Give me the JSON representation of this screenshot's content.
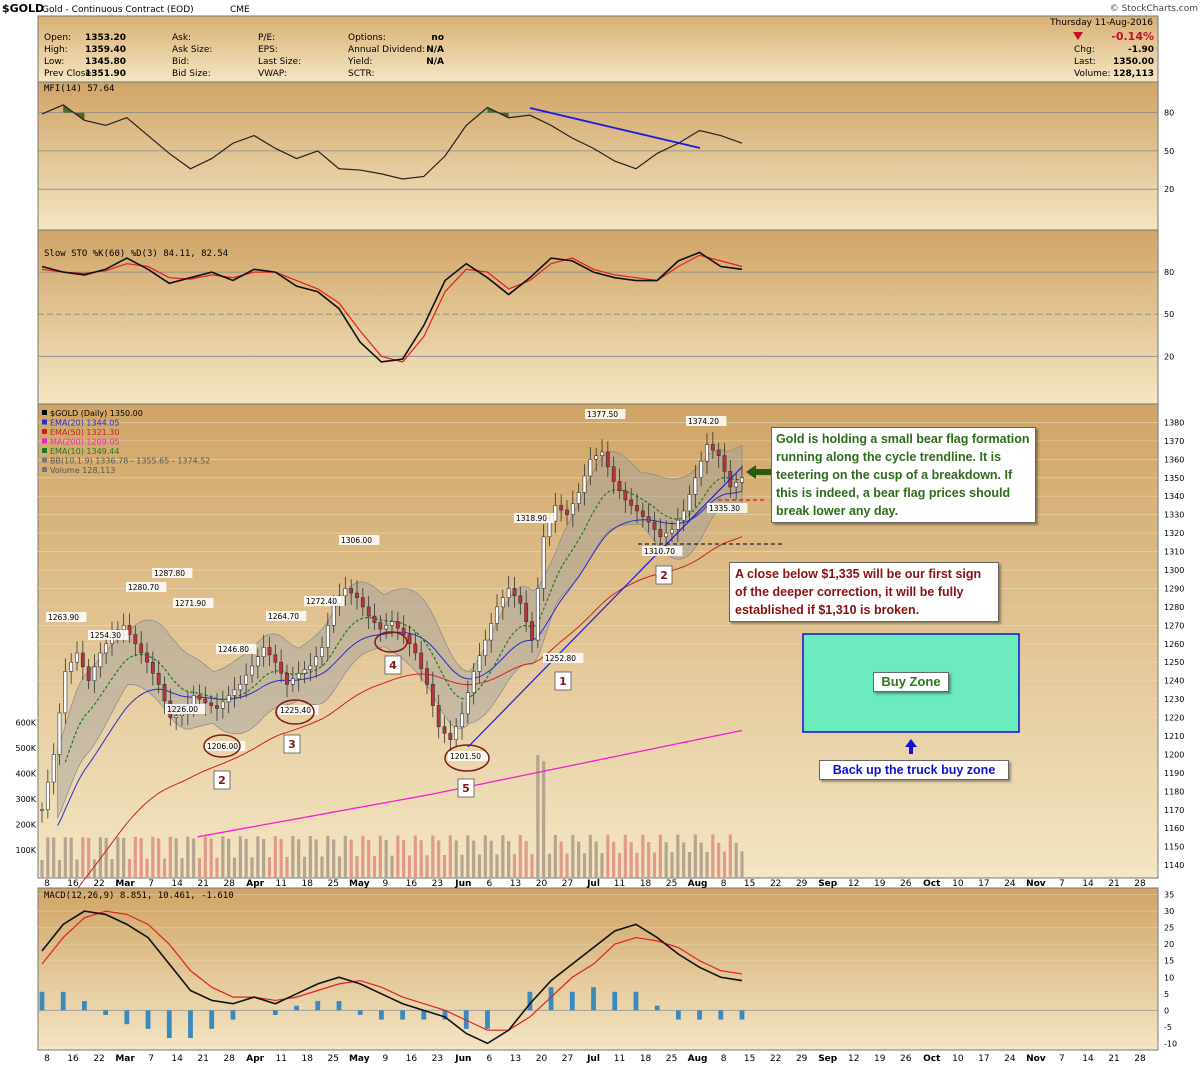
{
  "header": {
    "symbol": "$GOLD",
    "name": "Gold - Continuous Contract (EOD)",
    "exchange": "CME",
    "watermark": "© StockCharts.com",
    "date": "Thursday 11-Aug-2016",
    "stats_left": [
      {
        "label": "Open:",
        "value": "1353.20"
      },
      {
        "label": "High:",
        "value": "1359.40"
      },
      {
        "label": "Low:",
        "value": "1345.80"
      },
      {
        "label": "Prev Close:",
        "value": "1351.90"
      }
    ],
    "stats_mid": [
      {
        "label": "Ask:",
        "value": ""
      },
      {
        "label": "Ask Size:",
        "value": ""
      },
      {
        "label": "Bid:",
        "value": ""
      },
      {
        "label": "Bid Size:",
        "value": ""
      }
    ],
    "stats_mid2": [
      {
        "label": "P/E:",
        "value": ""
      },
      {
        "label": "EPS:",
        "value": ""
      },
      {
        "label": "Last Size:",
        "value": ""
      },
      {
        "label": "VWAP:",
        "value": ""
      }
    ],
    "stats_mid3": [
      {
        "label": "Options:",
        "value": "no"
      },
      {
        "label": "Annual Dividend:",
        "value": "N/A"
      },
      {
        "label": "Yield:",
        "value": "N/A"
      },
      {
        "label": "SCTR:",
        "value": ""
      }
    ],
    "stats_right": [
      {
        "label": "",
        "value": "-0.14%"
      },
      {
        "label": "Chg:",
        "value": "-1.90"
      },
      {
        "label": "Last:",
        "value": "1350.00"
      },
      {
        "label": "Volume:",
        "value": "128,113"
      }
    ]
  },
  "panels": {
    "mfi_label": "MFI(14) 57.64",
    "sto_label": "Slow STO %K(60) %D(3) 84.11, 82.54",
    "macd_label": "MACD(12,26,9) 8.851, 10.461, -1.610",
    "price_legend": [
      {
        "text": "$GOLD (Daily) 1350.00",
        "color": "#000000"
      },
      {
        "text": "EMA(20) 1344.05",
        "color": "#2a2ad0"
      },
      {
        "text": "EMA(50) 1321.30",
        "color": "#cc2020"
      },
      {
        "text": "MA(200) 1209.05",
        "color": "#ee22cc"
      },
      {
        "text": "EMA(10) 1349.44",
        "color": "#207820"
      },
      {
        "text": "BB(10,1.9) 1336.78 - 1355.65 - 1374.52",
        "color": "#777777"
      },
      {
        "text": "Volume 128,113",
        "color": "#777777"
      }
    ]
  },
  "annotations": {
    "note1": "Gold is holding a small bear flag formation running along the cycle trendline. It is teetering on the cusp of a breakdown. If this is indeed, a bear flag prices should break lower any day.",
    "note2": "A close below $1,335 will be our first sign of the deeper correction, it will be fully established if $1,310 is broken.",
    "buy_zone": "Buy Zone",
    "truck": "Back up the truck buy zone",
    "wave_labels": [
      "2",
      "3",
      "4",
      "5",
      "1",
      "2"
    ],
    "price_labels": [
      "1263.90",
      "1254.30",
      "1280.70",
      "1287.80",
      "1271.90",
      "1246.80",
      "1226.00",
      "1206.00",
      "1264.70",
      "1225.40",
      "1272.40",
      "1306.00",
      "1201.50",
      "1318.90",
      "1252.80",
      "1377.50",
      "1374.20",
      "1335.30",
      "1310.70"
    ]
  },
  "chart_data": {
    "type": "line",
    "title": "$GOLD (Daily) 1350.00",
    "x_ticks": [
      "8",
      "16",
      "22",
      "Mar",
      "7",
      "14",
      "21",
      "28",
      "Apr",
      "11",
      "18",
      "25",
      "May",
      "9",
      "16",
      "23",
      "Jun",
      "6",
      "13",
      "20",
      "27",
      "Jul",
      "11",
      "18",
      "25",
      "Aug",
      "8",
      "15",
      "22",
      "29",
      "Sep",
      "12",
      "19",
      "26",
      "Oct",
      "10",
      "17",
      "24",
      "Nov",
      "7",
      "14",
      "21",
      "28"
    ],
    "price_y_ticks": [
      1140,
      1150,
      1160,
      1170,
      1180,
      1190,
      1200,
      1210,
      1220,
      1230,
      1240,
      1250,
      1260,
      1270,
      1280,
      1290,
      1300,
      1310,
      1320,
      1330,
      1340,
      1350,
      1360,
      1370,
      1380
    ],
    "volume_y_ticks": [
      "100K",
      "200K",
      "300K",
      "400K",
      "500K",
      "600K"
    ],
    "mfi_y_ticks": [
      20,
      50,
      80
    ],
    "sto_y_ticks": [
      20,
      50,
      80
    ],
    "macd_y_ticks": [
      -10,
      -5,
      0,
      5,
      10,
      15,
      20,
      25,
      30,
      35
    ],
    "price_close_path": [
      [
        0,
        1170
      ],
      [
        3,
        1200
      ],
      [
        6,
        1245
      ],
      [
        9,
        1255
      ],
      [
        12,
        1240
      ],
      [
        15,
        1255
      ],
      [
        18,
        1265
      ],
      [
        21,
        1270
      ],
      [
        24,
        1260
      ],
      [
        27,
        1250
      ],
      [
        30,
        1238
      ],
      [
        33,
        1220
      ],
      [
        36,
        1222
      ],
      [
        39,
        1232
      ],
      [
        42,
        1228
      ],
      [
        45,
        1225
      ],
      [
        48,
        1232
      ],
      [
        51,
        1238
      ],
      [
        54,
        1248
      ],
      [
        57,
        1258
      ],
      [
        60,
        1250
      ],
      [
        63,
        1238
      ],
      [
        66,
        1244
      ],
      [
        69,
        1248
      ],
      [
        72,
        1258
      ],
      [
        75,
        1282
      ],
      [
        78,
        1290
      ],
      [
        81,
        1285
      ],
      [
        84,
        1275
      ],
      [
        87,
        1268
      ],
      [
        90,
        1272
      ],
      [
        93,
        1265
      ],
      [
        96,
        1255
      ],
      [
        99,
        1238
      ],
      [
        102,
        1215
      ],
      [
        105,
        1208
      ],
      [
        108,
        1222
      ],
      [
        111,
        1245
      ],
      [
        114,
        1262
      ],
      [
        117,
        1280
      ],
      [
        120,
        1290
      ],
      [
        123,
        1282
      ],
      [
        126,
        1262
      ],
      [
        129,
        1318
      ],
      [
        132,
        1335
      ],
      [
        135,
        1330
      ],
      [
        138,
        1342
      ],
      [
        141,
        1360
      ],
      [
        144,
        1364
      ],
      [
        147,
        1348
      ],
      [
        150,
        1338
      ],
      [
        153,
        1332
      ],
      [
        156,
        1326
      ],
      [
        159,
        1318
      ],
      [
        162,
        1322
      ],
      [
        165,
        1332
      ],
      [
        168,
        1350
      ],
      [
        171,
        1368
      ],
      [
        174,
        1362
      ],
      [
        177,
        1345
      ],
      [
        180,
        1350
      ]
    ],
    "mfi_values": [
      [
        0,
        79
      ],
      [
        3,
        86
      ],
      [
        6,
        74
      ],
      [
        9,
        70
      ],
      [
        12,
        76
      ],
      [
        15,
        62
      ],
      [
        18,
        48
      ],
      [
        21,
        36
      ],
      [
        24,
        44
      ],
      [
        27,
        56
      ],
      [
        30,
        62
      ],
      [
        33,
        52
      ],
      [
        36,
        44
      ],
      [
        39,
        50
      ],
      [
        42,
        36
      ],
      [
        45,
        35
      ],
      [
        48,
        32
      ],
      [
        51,
        28
      ],
      [
        54,
        30
      ],
      [
        57,
        46
      ],
      [
        60,
        70
      ],
      [
        63,
        84
      ],
      [
        66,
        76
      ],
      [
        69,
        78
      ],
      [
        72,
        70
      ],
      [
        75,
        60
      ],
      [
        78,
        52
      ],
      [
        81,
        42
      ],
      [
        84,
        36
      ],
      [
        87,
        48
      ],
      [
        90,
        56
      ],
      [
        93,
        66
      ],
      [
        96,
        62
      ],
      [
        99,
        56
      ]
    ],
    "sto_k_values": [
      [
        0,
        84
      ],
      [
        3,
        80
      ],
      [
        6,
        78
      ],
      [
        9,
        82
      ],
      [
        12,
        90
      ],
      [
        15,
        82
      ],
      [
        18,
        72
      ],
      [
        21,
        76
      ],
      [
        24,
        80
      ],
      [
        27,
        74
      ],
      [
        30,
        82
      ],
      [
        33,
        80
      ],
      [
        36,
        70
      ],
      [
        39,
        66
      ],
      [
        42,
        54
      ],
      [
        45,
        30
      ],
      [
        48,
        16
      ],
      [
        51,
        18
      ],
      [
        54,
        42
      ],
      [
        57,
        74
      ],
      [
        60,
        86
      ],
      [
        63,
        76
      ],
      [
        66,
        64
      ],
      [
        69,
        76
      ],
      [
        72,
        90
      ],
      [
        75,
        88
      ],
      [
        78,
        80
      ],
      [
        81,
        76
      ],
      [
        84,
        74
      ],
      [
        87,
        74
      ],
      [
        90,
        88
      ],
      [
        93,
        94
      ],
      [
        96,
        84
      ],
      [
        99,
        82
      ]
    ],
    "sto_d_values": [
      [
        0,
        82
      ],
      [
        3,
        80
      ],
      [
        6,
        79
      ],
      [
        9,
        81
      ],
      [
        12,
        86
      ],
      [
        15,
        84
      ],
      [
        18,
        76
      ],
      [
        21,
        75
      ],
      [
        24,
        78
      ],
      [
        27,
        76
      ],
      [
        30,
        80
      ],
      [
        33,
        80
      ],
      [
        36,
        74
      ],
      [
        39,
        68
      ],
      [
        42,
        58
      ],
      [
        45,
        38
      ],
      [
        48,
        20
      ],
      [
        51,
        16
      ],
      [
        54,
        34
      ],
      [
        57,
        66
      ],
      [
        60,
        82
      ],
      [
        63,
        80
      ],
      [
        66,
        68
      ],
      [
        69,
        74
      ],
      [
        72,
        86
      ],
      [
        75,
        90
      ],
      [
        78,
        82
      ],
      [
        81,
        78
      ],
      [
        84,
        76
      ],
      [
        87,
        74
      ],
      [
        90,
        84
      ],
      [
        93,
        92
      ],
      [
        96,
        88
      ],
      [
        99,
        84
      ]
    ],
    "macd_values": [
      [
        0,
        18
      ],
      [
        3,
        26
      ],
      [
        6,
        30
      ],
      [
        9,
        29
      ],
      [
        12,
        26
      ],
      [
        15,
        22
      ],
      [
        18,
        14
      ],
      [
        21,
        6
      ],
      [
        24,
        3
      ],
      [
        27,
        2
      ],
      [
        30,
        4
      ],
      [
        33,
        2
      ],
      [
        36,
        5
      ],
      [
        39,
        8
      ],
      [
        42,
        10
      ],
      [
        45,
        8
      ],
      [
        48,
        5
      ],
      [
        51,
        2
      ],
      [
        54,
        0
      ],
      [
        57,
        -2
      ],
      [
        60,
        -7
      ],
      [
        63,
        -10
      ],
      [
        66,
        -6
      ],
      [
        69,
        2
      ],
      [
        72,
        9
      ],
      [
        75,
        14
      ],
      [
        78,
        19
      ],
      [
        81,
        24
      ],
      [
        84,
        26
      ],
      [
        87,
        22
      ],
      [
        90,
        17
      ],
      [
        93,
        13
      ],
      [
        96,
        10
      ],
      [
        99,
        9
      ]
    ],
    "signal_values": [
      [
        0,
        14
      ],
      [
        3,
        22
      ],
      [
        6,
        28
      ],
      [
        9,
        30
      ],
      [
        12,
        29
      ],
      [
        15,
        26
      ],
      [
        18,
        20
      ],
      [
        21,
        12
      ],
      [
        24,
        7
      ],
      [
        27,
        4
      ],
      [
        30,
        4
      ],
      [
        33,
        3
      ],
      [
        36,
        4
      ],
      [
        39,
        6
      ],
      [
        42,
        8
      ],
      [
        45,
        9
      ],
      [
        48,
        7
      ],
      [
        51,
        4
      ],
      [
        54,
        2
      ],
      [
        57,
        0
      ],
      [
        60,
        -3
      ],
      [
        63,
        -6
      ],
      [
        66,
        -6
      ],
      [
        69,
        -2
      ],
      [
        72,
        4
      ],
      [
        75,
        10
      ],
      [
        78,
        14
      ],
      [
        81,
        20
      ],
      [
        84,
        22
      ],
      [
        87,
        21
      ],
      [
        90,
        19
      ],
      [
        93,
        15
      ],
      [
        96,
        12
      ],
      [
        99,
        11
      ]
    ]
  },
  "colors": {
    "panel_bg_top": "#d2a769",
    "panel_bg_bottom": "#f2e3c0",
    "ema20": "#2a2ad0",
    "ema50": "#cc2020",
    "ma200": "#ee22cc",
    "ema10": "#207820",
    "buy_zone_fill": "#6cebbf",
    "buy_zone_border": "#1010e0"
  }
}
